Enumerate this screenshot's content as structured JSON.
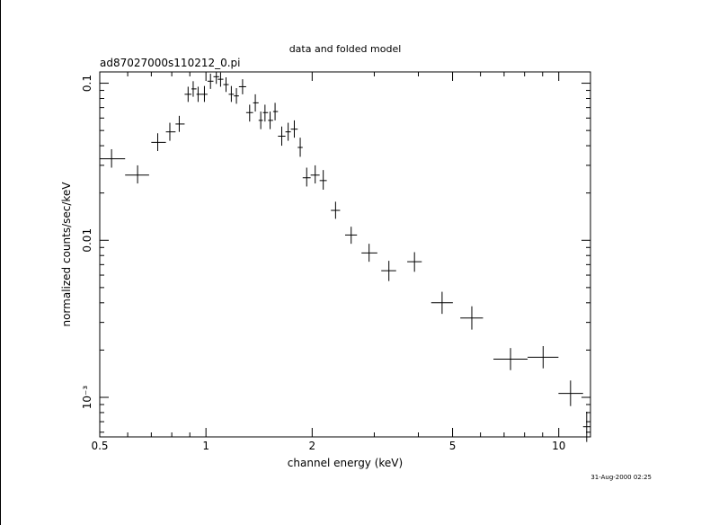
{
  "chart_data": {
    "type": "scatter",
    "title": "data and folded model",
    "subtitle": "ad87027000s110212_0.pi",
    "xlabel": "channel energy (keV)",
    "ylabel": "normalized counts/sec/keV",
    "timestamp": "31-Aug-2000 02:25",
    "x_scale": "log",
    "y_scale": "log",
    "xlim": [
      0.5,
      12.3
    ],
    "ylim": [
      0.00056,
      0.118
    ],
    "x_ticks": [
      {
        "value": 0.5,
        "label": "0.5"
      },
      {
        "value": 1,
        "label": "1"
      },
      {
        "value": 2,
        "label": "2"
      },
      {
        "value": 5,
        "label": "5"
      },
      {
        "value": 10,
        "label": "10"
      }
    ],
    "y_ticks": [
      {
        "value": 0.1,
        "label": "0.1"
      },
      {
        "value": 0.01,
        "label": "0.01"
      },
      {
        "value": 0.001,
        "label": "10⁻³"
      }
    ],
    "points": [
      {
        "x": 0.54,
        "xlo": 0.5,
        "xhi": 0.59,
        "y": 0.033,
        "ylo": 0.029,
        "yhi": 0.038
      },
      {
        "x": 0.64,
        "xlo": 0.59,
        "xhi": 0.69,
        "y": 0.026,
        "ylo": 0.023,
        "yhi": 0.03
      },
      {
        "x": 0.73,
        "xlo": 0.7,
        "xhi": 0.77,
        "y": 0.042,
        "ylo": 0.037,
        "yhi": 0.048
      },
      {
        "x": 0.79,
        "xlo": 0.77,
        "xhi": 0.82,
        "y": 0.049,
        "ylo": 0.043,
        "yhi": 0.056
      },
      {
        "x": 0.84,
        "xlo": 0.82,
        "xhi": 0.87,
        "y": 0.055,
        "ylo": 0.049,
        "yhi": 0.062
      },
      {
        "x": 0.89,
        "xlo": 0.87,
        "xhi": 0.91,
        "y": 0.085,
        "ylo": 0.076,
        "yhi": 0.095
      },
      {
        "x": 0.92,
        "xlo": 0.91,
        "xhi": 0.94,
        "y": 0.092,
        "ylo": 0.082,
        "yhi": 0.103
      },
      {
        "x": 0.95,
        "xlo": 0.94,
        "xhi": 0.97,
        "y": 0.085,
        "ylo": 0.076,
        "yhi": 0.095
      },
      {
        "x": 0.99,
        "xlo": 0.97,
        "xhi": 1.01,
        "y": 0.085,
        "ylo": 0.076,
        "yhi": 0.096
      },
      {
        "x": 1.03,
        "xlo": 1.01,
        "xhi": 1.05,
        "y": 0.103,
        "ylo": 0.092,
        "yhi": 0.115
      },
      {
        "x": 1.07,
        "xlo": 1.05,
        "xhi": 1.09,
        "y": 0.11,
        "ylo": 0.099,
        "yhi": 0.118
      },
      {
        "x": 1.1,
        "xlo": 1.08,
        "xhi": 1.12,
        "y": 0.106,
        "ylo": 0.095,
        "yhi": 0.117
      },
      {
        "x": 1.14,
        "xlo": 1.12,
        "xhi": 1.16,
        "y": 0.098,
        "ylo": 0.088,
        "yhi": 0.109
      },
      {
        "x": 1.18,
        "xlo": 1.16,
        "xhi": 1.2,
        "y": 0.085,
        "ylo": 0.076,
        "yhi": 0.096
      },
      {
        "x": 1.22,
        "xlo": 1.2,
        "xhi": 1.24,
        "y": 0.083,
        "ylo": 0.074,
        "yhi": 0.093
      },
      {
        "x": 1.27,
        "xlo": 1.24,
        "xhi": 1.3,
        "y": 0.095,
        "ylo": 0.085,
        "yhi": 0.106
      },
      {
        "x": 1.33,
        "xlo": 1.3,
        "xhi": 1.36,
        "y": 0.065,
        "ylo": 0.057,
        "yhi": 0.073
      },
      {
        "x": 1.38,
        "xlo": 1.36,
        "xhi": 1.41,
        "y": 0.075,
        "ylo": 0.066,
        "yhi": 0.085
      },
      {
        "x": 1.43,
        "xlo": 1.41,
        "xhi": 1.45,
        "y": 0.058,
        "ylo": 0.051,
        "yhi": 0.066
      },
      {
        "x": 1.47,
        "xlo": 1.45,
        "xhi": 1.5,
        "y": 0.065,
        "ylo": 0.057,
        "yhi": 0.073
      },
      {
        "x": 1.52,
        "xlo": 1.5,
        "xhi": 1.55,
        "y": 0.058,
        "ylo": 0.051,
        "yhi": 0.066
      },
      {
        "x": 1.57,
        "xlo": 1.55,
        "xhi": 1.6,
        "y": 0.066,
        "ylo": 0.058,
        "yhi": 0.075
      },
      {
        "x": 1.64,
        "xlo": 1.6,
        "xhi": 1.68,
        "y": 0.046,
        "ylo": 0.04,
        "yhi": 0.053
      },
      {
        "x": 1.71,
        "xlo": 1.68,
        "xhi": 1.74,
        "y": 0.049,
        "ylo": 0.043,
        "yhi": 0.056
      },
      {
        "x": 1.78,
        "xlo": 1.74,
        "xhi": 1.82,
        "y": 0.051,
        "ylo": 0.045,
        "yhi": 0.058
      },
      {
        "x": 1.85,
        "xlo": 1.82,
        "xhi": 1.88,
        "y": 0.039,
        "ylo": 0.034,
        "yhi": 0.045
      },
      {
        "x": 1.93,
        "xlo": 1.88,
        "xhi": 1.98,
        "y": 0.025,
        "ylo": 0.022,
        "yhi": 0.029
      },
      {
        "x": 2.04,
        "xlo": 1.98,
        "xhi": 2.1,
        "y": 0.026,
        "ylo": 0.023,
        "yhi": 0.03
      },
      {
        "x": 2.15,
        "xlo": 2.1,
        "xhi": 2.2,
        "y": 0.024,
        "ylo": 0.021,
        "yhi": 0.028
      },
      {
        "x": 2.33,
        "xlo": 2.26,
        "xhi": 2.4,
        "y": 0.0155,
        "ylo": 0.0137,
        "yhi": 0.0176
      },
      {
        "x": 2.58,
        "xlo": 2.48,
        "xhi": 2.68,
        "y": 0.0108,
        "ylo": 0.0095,
        "yhi": 0.0122
      },
      {
        "x": 2.9,
        "xlo": 2.76,
        "xhi": 3.06,
        "y": 0.0083,
        "ylo": 0.0073,
        "yhi": 0.0095
      },
      {
        "x": 3.3,
        "xlo": 3.14,
        "xhi": 3.46,
        "y": 0.0064,
        "ylo": 0.0055,
        "yhi": 0.0074
      },
      {
        "x": 3.9,
        "xlo": 3.72,
        "xhi": 4.09,
        "y": 0.0073,
        "ylo": 0.0063,
        "yhi": 0.0084
      },
      {
        "x": 4.67,
        "xlo": 4.35,
        "xhi": 5.01,
        "y": 0.004,
        "ylo": 0.0034,
        "yhi": 0.0047
      },
      {
        "x": 5.67,
        "xlo": 5.26,
        "xhi": 6.1,
        "y": 0.0032,
        "ylo": 0.0027,
        "yhi": 0.0038
      },
      {
        "x": 7.3,
        "xlo": 6.53,
        "xhi": 8.16,
        "y": 0.00175,
        "ylo": 0.00149,
        "yhi": 0.00206
      },
      {
        "x": 9.03,
        "xlo": 8.16,
        "xhi": 9.98,
        "y": 0.0018,
        "ylo": 0.00153,
        "yhi": 0.00212
      },
      {
        "x": 10.8,
        "xlo": 9.98,
        "xhi": 11.72,
        "y": 0.00106,
        "ylo": 0.00088,
        "yhi": 0.00128
      },
      {
        "x": 12.0,
        "xlo": 11.72,
        "xhi": 12.3,
        "y": 0.00065,
        "ylo": 0.00052,
        "yhi": 0.00081
      }
    ]
  }
}
